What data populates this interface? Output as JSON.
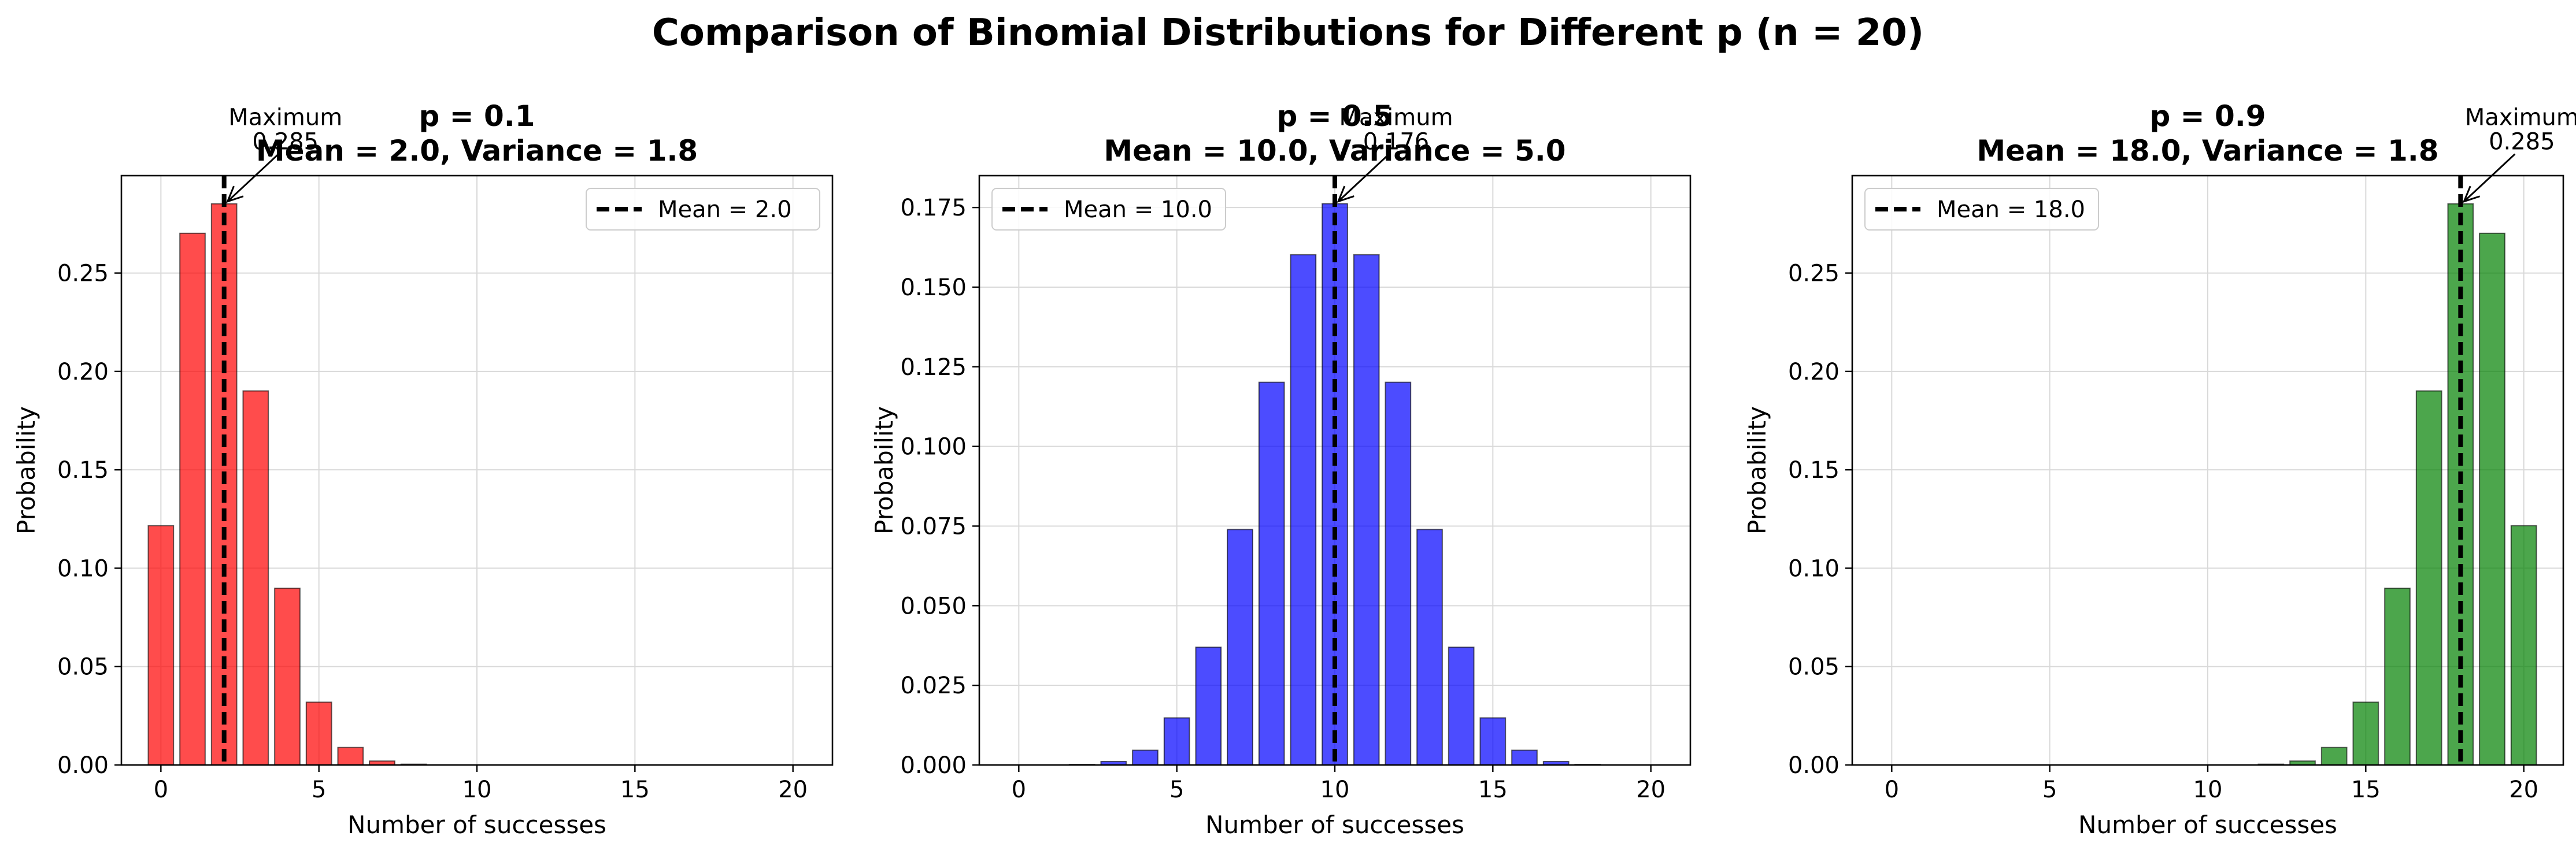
{
  "figure": {
    "suptitle": "Comparison of Binomial Distributions for Different p (n = 20)"
  },
  "chart_data": [
    {
      "type": "bar",
      "title_line1": "p = 0.1",
      "title_line2": "Mean = 2.0, Variance = 1.8",
      "xlabel": "Number of successes",
      "ylabel": "Probability",
      "x": [
        0,
        1,
        2,
        3,
        4,
        5,
        6,
        7,
        8,
        9,
        10,
        11,
        12,
        13,
        14,
        15,
        16,
        17,
        18,
        19,
        20
      ],
      "values": [
        0.1216,
        0.2702,
        0.2852,
        0.1901,
        0.0898,
        0.0319,
        0.0089,
        0.002,
        0.0004,
        0.0001,
        0,
        0,
        0,
        0,
        0,
        0,
        0,
        0,
        0,
        0,
        0
      ],
      "xlim": [
        -1.25,
        21.25
      ],
      "ylim": [
        0,
        0.2995
      ],
      "xticks": [
        0,
        5,
        10,
        15,
        20
      ],
      "yticks": [
        0,
        0.05,
        0.1,
        0.15,
        0.2,
        0.25
      ],
      "ytick_labels": [
        "0.00",
        "0.05",
        "0.10",
        "0.15",
        "0.20",
        "0.25"
      ],
      "mean": 2.0,
      "legend": "Mean = 2.0",
      "legend_position": "upper right",
      "bar_color": "#ff0000",
      "annotation": {
        "label": "Maximum",
        "value": "0.285",
        "x": 2,
        "y": 0.2852
      },
      "grid": true
    },
    {
      "type": "bar",
      "title_line1": "p = 0.5",
      "title_line2": "Mean = 10.0, Variance = 5.0",
      "xlabel": "Number of successes",
      "ylabel": "Probability",
      "x": [
        0,
        1,
        2,
        3,
        4,
        5,
        6,
        7,
        8,
        9,
        10,
        11,
        12,
        13,
        14,
        15,
        16,
        17,
        18,
        19,
        20
      ],
      "values": [
        1e-06,
        1.9e-05,
        0.000181,
        0.001087,
        0.004621,
        0.014786,
        0.036964,
        0.073929,
        0.120134,
        0.160179,
        0.176197,
        0.160179,
        0.120134,
        0.073929,
        0.036964,
        0.014786,
        0.004621,
        0.001087,
        0.000181,
        1.9e-05,
        1e-06
      ],
      "xlim": [
        -1.25,
        21.25
      ],
      "ylim": [
        0,
        0.185
      ],
      "xticks": [
        0,
        5,
        10,
        15,
        20
      ],
      "yticks": [
        0,
        0.025,
        0.05,
        0.075,
        0.1,
        0.125,
        0.15,
        0.175
      ],
      "ytick_labels": [
        "0.000",
        "0.025",
        "0.050",
        "0.075",
        "0.100",
        "0.125",
        "0.150",
        "0.175"
      ],
      "mean": 10.0,
      "legend": "Mean = 10.0",
      "legend_position": "upper left",
      "bar_color": "#0000ff",
      "annotation": {
        "label": "Maximum",
        "value": "0.176",
        "x": 10,
        "y": 0.1762
      },
      "grid": true
    },
    {
      "type": "bar",
      "title_line1": "p = 0.9",
      "title_line2": "Mean = 18.0, Variance = 1.8",
      "xlabel": "Number of successes",
      "ylabel": "Probability",
      "x": [
        0,
        1,
        2,
        3,
        4,
        5,
        6,
        7,
        8,
        9,
        10,
        11,
        12,
        13,
        14,
        15,
        16,
        17,
        18,
        19,
        20
      ],
      "values": [
        0,
        0,
        0,
        0,
        0,
        0,
        0,
        0,
        0,
        0,
        0,
        0.0001,
        0.0004,
        0.002,
        0.0089,
        0.0319,
        0.0898,
        0.1901,
        0.2852,
        0.2702,
        0.1216
      ],
      "xlim": [
        -1.25,
        21.25
      ],
      "ylim": [
        0,
        0.2995
      ],
      "xticks": [
        0,
        5,
        10,
        15,
        20
      ],
      "yticks": [
        0,
        0.05,
        0.1,
        0.15,
        0.2,
        0.25
      ],
      "ytick_labels": [
        "0.00",
        "0.05",
        "0.10",
        "0.15",
        "0.20",
        "0.25"
      ],
      "mean": 18.0,
      "legend": "Mean = 18.0",
      "legend_position": "upper left",
      "bar_color": "#008000",
      "annotation": {
        "label": "Maximum",
        "value": "0.285",
        "x": 18,
        "y": 0.2852
      },
      "grid": true
    }
  ]
}
